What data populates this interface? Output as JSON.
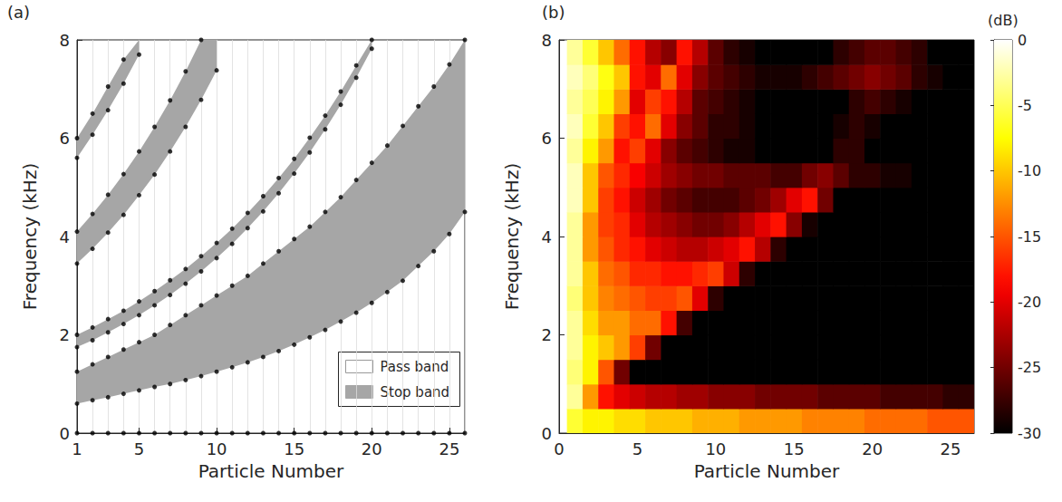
{
  "chart_data": [
    {
      "type": "band",
      "title": "(a)",
      "x_label": "Particle Number",
      "y_label": "Frequency (kHz)",
      "x": [
        1,
        2,
        3,
        4,
        5,
        6,
        7,
        8,
        9,
        10,
        11,
        12,
        13,
        14,
        15,
        16,
        17,
        18,
        19,
        20,
        21,
        22,
        23,
        24,
        25,
        26
      ],
      "xlim": [
        1,
        26
      ],
      "xticks": [
        1,
        5,
        10,
        15,
        20,
        25
      ],
      "ylim": [
        0,
        8
      ],
      "yticks": [
        0,
        2,
        4,
        6,
        8
      ],
      "grid": true,
      "legend": "lower right",
      "series": [
        {
          "name": "Pass band",
          "color": "#ffffff",
          "marker": "circle",
          "values": [
            0,
            0,
            0,
            0,
            0,
            0,
            0,
            0,
            0,
            0,
            0,
            0,
            0,
            0,
            0,
            0,
            0,
            0,
            0,
            0,
            0,
            0,
            0,
            0,
            0,
            0
          ]
        },
        {
          "name": "Stop band",
          "color": "#a6a6a6",
          "marker": "circle",
          "bands": [
            {
              "lower": [
                0.6,
                0.67,
                0.73,
                0.8,
                0.87,
                0.94,
                1.0,
                1.08,
                1.16,
                1.25,
                1.34,
                1.44,
                1.55,
                1.67,
                1.8,
                1.95,
                2.1,
                2.27,
                2.45,
                2.65,
                2.87,
                3.1,
                3.4,
                3.7,
                4.05,
                4.5
              ],
              "upper": [
                1.25,
                1.4,
                1.55,
                1.7,
                1.85,
                2.0,
                2.2,
                2.4,
                2.6,
                2.8,
                3.0,
                3.2,
                3.45,
                3.7,
                3.95,
                4.2,
                4.5,
                4.8,
                5.15,
                5.5,
                5.85,
                6.25,
                6.65,
                7.05,
                7.5,
                8.0
              ]
            },
            {
              "lower": [
                1.75,
                1.89,
                2.05,
                2.22,
                2.4,
                2.6,
                2.81,
                3.04,
                3.29,
                3.56,
                3.85,
                4.17,
                4.51,
                4.88,
                5.28,
                5.71,
                6.18,
                6.68,
                7.23,
                7.82,
                null,
                null,
                null,
                null,
                null,
                null
              ],
              "upper": [
                2.0,
                2.15,
                2.32,
                2.49,
                2.68,
                2.89,
                3.11,
                3.34,
                3.6,
                3.87,
                4.16,
                4.48,
                4.82,
                5.19,
                5.58,
                6.01,
                6.46,
                6.95,
                7.48,
                8.0,
                null,
                null,
                null,
                null,
                null,
                null
              ]
            },
            {
              "lower": [
                3.45,
                3.75,
                4.08,
                4.44,
                4.84,
                5.26,
                5.73,
                6.23,
                6.78,
                7.38,
                null,
                null,
                null,
                null,
                null,
                null,
                null,
                null,
                null,
                null,
                null,
                null,
                null,
                null,
                null,
                null
              ],
              "upper": [
                4.1,
                4.46,
                4.85,
                5.27,
                5.73,
                6.23,
                6.77,
                7.36,
                8.0,
                null,
                null,
                null,
                null,
                null,
                null,
                null,
                null,
                null,
                null,
                null,
                null,
                null,
                null,
                null,
                null,
                null
              ]
            },
            {
              "lower": [
                5.6,
                6.07,
                6.57,
                7.11,
                7.7,
                null,
                null,
                null,
                null,
                null,
                null,
                null,
                null,
                null,
                null,
                null,
                null,
                null,
                null,
                null,
                null,
                null,
                null,
                null,
                null,
                null
              ],
              "upper": [
                6.0,
                6.5,
                7.05,
                7.6,
                null,
                null,
                null,
                null,
                null,
                null,
                null,
                null,
                null,
                null,
                null,
                null,
                null,
                null,
                null,
                null,
                null,
                null,
                null,
                null,
                null,
                null
              ]
            }
          ]
        }
      ]
    },
    {
      "type": "heatmap",
      "title": "(b)",
      "x_label": "Particle Number",
      "y_label": "Frequency (kHz)",
      "x": [
        1,
        2,
        3,
        4,
        5,
        6,
        7,
        8,
        9,
        10,
        11,
        12,
        13,
        14,
        15,
        16,
        17,
        18,
        19,
        20,
        21,
        22,
        23,
        24,
        25,
        26
      ],
      "y": [
        0.25,
        0.75,
        1.25,
        1.75,
        2.25,
        2.75,
        3.25,
        3.75,
        4.25,
        4.75,
        5.25,
        5.75,
        6.25,
        6.75,
        7.25,
        7.75
      ],
      "xlim": [
        0,
        26.5
      ],
      "xticks": [
        0,
        5,
        10,
        15,
        20,
        25
      ],
      "ylim": [
        0,
        8
      ],
      "yticks": [
        0,
        2,
        4,
        6,
        8
      ],
      "grid": false,
      "cells": [
        [
          -6,
          -8,
          -8,
          -9,
          -9,
          -10,
          -10,
          -10,
          -11,
          -11,
          -11,
          -12,
          -12,
          -12,
          -12,
          -13,
          -13,
          -13,
          -13,
          -14,
          -14,
          -14,
          -14,
          -15,
          -15,
          -15
        ],
        [
          -3,
          -12,
          -18,
          -20,
          -21,
          -22,
          -22,
          -23,
          -23,
          -24,
          -24,
          -24,
          -25,
          -25,
          -25,
          -25,
          -26,
          -26,
          -26,
          -26,
          -27,
          -27,
          -27,
          -27,
          -28,
          -28
        ],
        [
          -4,
          -8,
          -15,
          -25,
          -30,
          -30,
          -30,
          -30,
          -30,
          -30,
          -30,
          -30,
          -30,
          -30,
          -30,
          -30,
          -30,
          -30,
          -30,
          -30,
          -30,
          -30,
          -30,
          -30,
          -30,
          -30
        ],
        [
          -3,
          -8,
          -10,
          -12,
          -16,
          -25,
          -30,
          -30,
          -30,
          -30,
          -30,
          -30,
          -30,
          -30,
          -30,
          -30,
          -30,
          -30,
          -30,
          -30,
          -30,
          -30,
          -30,
          -30,
          -30,
          -30
        ],
        [
          -3,
          -9,
          -12,
          -12,
          -14,
          -14,
          -18,
          -27,
          -30,
          -30,
          -30,
          -30,
          -30,
          -30,
          -30,
          -30,
          -30,
          -30,
          -30,
          -30,
          -30,
          -30,
          -30,
          -30,
          -30,
          -30
        ],
        [
          -4,
          -10,
          -13,
          -14,
          -15,
          -16,
          -16,
          -15,
          -20,
          -28,
          -30,
          -30,
          -30,
          -30,
          -30,
          -30,
          -30,
          -30,
          -30,
          -30,
          -30,
          -30,
          -30,
          -30,
          -30,
          -30
        ],
        [
          -3,
          -10,
          -14,
          -15,
          -17,
          -17,
          -18,
          -18,
          -17,
          -16,
          -21,
          -28,
          -30,
          -30,
          -30,
          -30,
          -30,
          -30,
          -30,
          -30,
          -30,
          -30,
          -30,
          -30,
          -30,
          -30
        ],
        [
          -3,
          -12,
          -15,
          -17,
          -18,
          -20,
          -21,
          -22,
          -22,
          -21,
          -20,
          -18,
          -22,
          -28,
          -30,
          -30,
          -30,
          -30,
          -30,
          -30,
          -30,
          -30,
          -30,
          -30,
          -30,
          -30
        ],
        [
          -3,
          -12,
          -16,
          -17,
          -20,
          -22,
          -23,
          -24,
          -25,
          -25,
          -24,
          -22,
          -20,
          -18,
          -24,
          -29,
          -30,
          -30,
          -30,
          -30,
          -30,
          -30,
          -30,
          -30,
          -30,
          -30
        ],
        [
          -2,
          -10,
          -16,
          -18,
          -21,
          -23,
          -25,
          -26,
          -27,
          -27,
          -27,
          -26,
          -25,
          -23,
          -20,
          -18,
          -25,
          -30,
          -30,
          -30,
          -30,
          -30,
          -30,
          -30,
          -30,
          -30
        ],
        [
          -2,
          -10,
          -15,
          -17,
          -19,
          -21,
          -23,
          -24,
          -25,
          -25,
          -26,
          -26,
          -26,
          -27,
          -27,
          -25,
          -24,
          -26,
          -28,
          -28,
          -29,
          -29,
          -30,
          -30,
          -30,
          -30
        ],
        [
          -3,
          -8,
          -12,
          -18,
          -16,
          -20,
          -24,
          -26,
          -27,
          -28,
          -29,
          -29,
          -30,
          -30,
          -30,
          -30,
          -30,
          -28,
          -28,
          -30,
          -30,
          -30,
          -30,
          -30,
          -30,
          -30
        ],
        [
          -2,
          -6,
          -10,
          -16,
          -18,
          -14,
          -20,
          -24,
          -26,
          -28,
          -28,
          -29,
          -30,
          -30,
          -30,
          -30,
          -30,
          -29,
          -28,
          -29,
          -30,
          -30,
          -30,
          -30,
          -30,
          -30
        ],
        [
          -3,
          -5,
          -8,
          -12,
          -20,
          -16,
          -18,
          -22,
          -26,
          -27,
          -28,
          -29,
          -30,
          -30,
          -30,
          -30,
          -30,
          -30,
          -28,
          -27,
          -28,
          -29,
          -30,
          -30,
          -30,
          -30
        ],
        [
          -2,
          -4,
          -7,
          -10,
          -18,
          -20,
          -14,
          -20,
          -24,
          -26,
          -27,
          -28,
          -29,
          -29,
          -29,
          -28,
          -27,
          -26,
          -25,
          -24,
          -25,
          -26,
          -28,
          -29,
          -30,
          -30
        ],
        [
          -3,
          -6,
          -10,
          -14,
          -18,
          -22,
          -24,
          -18,
          -22,
          -26,
          -28,
          -29,
          -30,
          -30,
          -30,
          -30,
          -30,
          -28,
          -27,
          -26,
          -26,
          -27,
          -28,
          -30,
          -30,
          -30
        ]
      ],
      "colorbar": {
        "title": "(dB)",
        "range": [
          -30,
          0
        ],
        "ticks": [
          0,
          -5,
          -10,
          -15,
          -20,
          -25,
          -30
        ]
      }
    }
  ]
}
